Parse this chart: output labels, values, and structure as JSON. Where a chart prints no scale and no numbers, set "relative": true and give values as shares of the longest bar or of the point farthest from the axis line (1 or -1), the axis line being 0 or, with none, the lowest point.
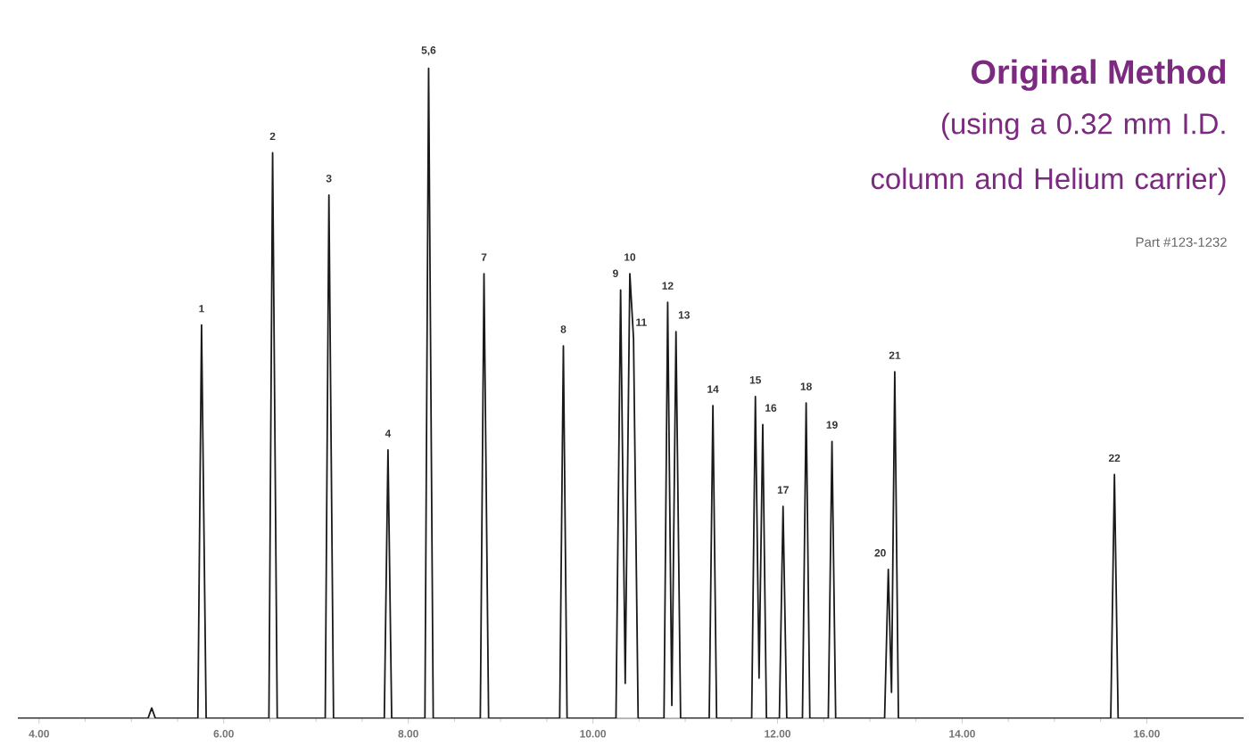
{
  "chart_data": {
    "type": "line",
    "title": "Original Method",
    "subtitle": "(using a 0.32 mm I.D. column and Helium carrier)",
    "relative": true,
    "marker": "none",
    "line_style": "solid",
    "xlim": [
      3.77,
      17.05
    ],
    "xticks": [
      {
        "value": 4,
        "label": "4.00"
      },
      {
        "value": 6,
        "label": "6.00"
      },
      {
        "value": 8,
        "label": "8.00"
      },
      {
        "value": 10,
        "label": "10.00"
      },
      {
        "value": 12,
        "label": "12.00"
      },
      {
        "value": 14,
        "label": "14.00"
      },
      {
        "value": 16,
        "label": "16.00"
      }
    ],
    "series": [
      {
        "color": "#1a1a1a",
        "x": [
          3.77,
          5.18,
          5.22,
          5.26,
          5.72,
          5.76,
          5.81,
          6.49,
          6.53,
          6.58,
          7.1,
          7.14,
          7.19,
          7.74,
          7.78,
          7.82,
          8.18,
          8.22,
          8.27,
          8.78,
          8.82,
          8.87,
          9.64,
          9.68,
          9.72,
          10.25,
          10.3,
          10.35,
          10.4,
          10.44,
          10.49,
          10.77,
          10.81,
          10.855,
          10.9,
          10.95,
          11.26,
          11.3,
          11.34,
          11.72,
          11.76,
          11.8,
          11.84,
          11.88,
          12.02,
          12.06,
          12.1,
          12.27,
          12.31,
          12.35,
          12.55,
          12.59,
          12.63,
          13.16,
          13.2,
          13.235,
          13.27,
          13.31,
          15.61,
          15.65,
          15.69,
          17.05
        ],
        "values": [
          0,
          0,
          0.016,
          0,
          0,
          0.605,
          0,
          0,
          0.87,
          0,
          0,
          0.805,
          0,
          0,
          0.413,
          0,
          0,
          1.0,
          0,
          0,
          0.684,
          0,
          0,
          0.573,
          0,
          0,
          0.659,
          0.054,
          0.684,
          0.584,
          0,
          0,
          0.64,
          0.02,
          0.595,
          0,
          0,
          0.481,
          0,
          0,
          0.495,
          0.062,
          0.452,
          0,
          0,
          0.326,
          0,
          0,
          0.485,
          0,
          0,
          0.426,
          0,
          0,
          0.229,
          0.04,
          0.533,
          0,
          0,
          0.375,
          0,
          0
        ]
      }
    ],
    "annotations": [
      {
        "text": "1",
        "x": 5.76,
        "y": 0.605
      },
      {
        "text": "2",
        "x": 6.53,
        "y": 0.87
      },
      {
        "text": "3",
        "x": 7.14,
        "y": 0.805
      },
      {
        "text": "4",
        "x": 7.78,
        "y": 0.413
      },
      {
        "text": "5,6",
        "x": 8.22,
        "y": 1.0
      },
      {
        "text": "7",
        "x": 8.82,
        "y": 0.684
      },
      {
        "text": "8",
        "x": 9.68,
        "y": 0.573
      },
      {
        "text": "9",
        "x": 10.3,
        "y": 0.659
      },
      {
        "text": "10",
        "x": 10.4,
        "y": 0.684
      },
      {
        "text": "11",
        "x": 10.44,
        "y": 0.584
      },
      {
        "text": "12",
        "x": 10.81,
        "y": 0.64
      },
      {
        "text": "13",
        "x": 10.9,
        "y": 0.595
      },
      {
        "text": "14",
        "x": 11.3,
        "y": 0.481
      },
      {
        "text": "15",
        "x": 11.76,
        "y": 0.495
      },
      {
        "text": "16",
        "x": 11.84,
        "y": 0.452
      },
      {
        "text": "17",
        "x": 12.06,
        "y": 0.326
      },
      {
        "text": "18",
        "x": 12.31,
        "y": 0.485
      },
      {
        "text": "19",
        "x": 12.59,
        "y": 0.426
      },
      {
        "text": "20",
        "x": 13.2,
        "y": 0.229
      },
      {
        "text": "21",
        "x": 13.27,
        "y": 0.533
      },
      {
        "text": "22",
        "x": 15.65,
        "y": 0.375
      },
      "Part #123-1232"
    ]
  }
}
